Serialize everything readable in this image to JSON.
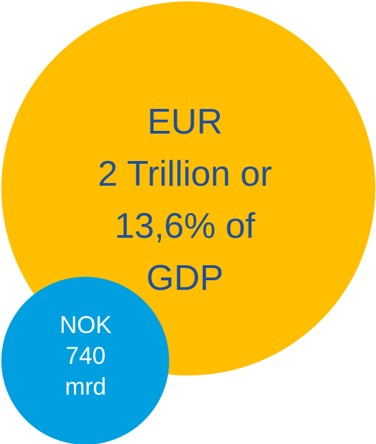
{
  "large_bubble": {
    "lines": [
      "EUR",
      "2 Trillion or",
      "13,6% of",
      "GDP"
    ],
    "color": "#ffbe00",
    "text_color": "#1f4f9a"
  },
  "small_bubble": {
    "lines": [
      "NOK",
      "740",
      "mrd"
    ],
    "color": "#009fe0",
    "text_color": "#ffffff"
  }
}
